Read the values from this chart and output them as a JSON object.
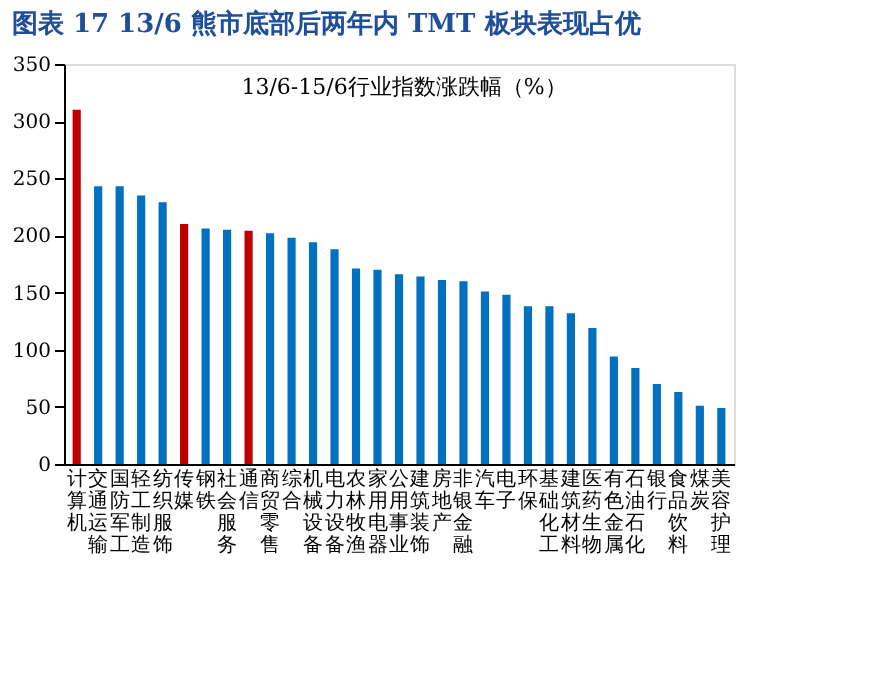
{
  "chart_data": {
    "type": "bar",
    "title": "图表 17    13/6 熊市底部后两年内 TMT 板块表现占优",
    "subtitle": "13/6-15/6行业指数涨跌幅（%）",
    "categories": [
      "计算机",
      "交通运输",
      "国防军工",
      "轻工制造",
      "纺织服饰",
      "传媒",
      "钢铁",
      "社会服务",
      "通信",
      "商贸零售",
      "综合",
      "机械设备",
      "电力设备",
      "农林牧渔",
      "家用电器",
      "公用事业",
      "建筑装饰",
      "房地产",
      "非银金融",
      "汽车",
      "电子",
      "环保",
      "基础化工",
      "建筑材料",
      "医药生物",
      "有色金属",
      "石油石化",
      "银行",
      "食品饮料",
      "煤炭",
      "美容护理"
    ],
    "values": [
      310,
      243,
      243,
      235,
      229,
      210,
      206,
      205,
      204,
      202,
      198,
      194,
      188,
      171,
      170,
      166,
      164,
      161,
      160,
      151,
      148,
      138,
      138,
      132,
      119,
      94,
      84,
      70,
      63,
      51,
      49
    ],
    "colors": [
      "#c00000",
      "#0070c0",
      "#0070c0",
      "#0070c0",
      "#0070c0",
      "#c00000",
      "#0070c0",
      "#0070c0",
      "#c00000",
      "#0070c0",
      "#0070c0",
      "#0070c0",
      "#0070c0",
      "#0070c0",
      "#0070c0",
      "#0070c0",
      "#0070c0",
      "#0070c0",
      "#0070c0",
      "#0070c0",
      "#0070c0",
      "#0070c0",
      "#0070c0",
      "#0070c0",
      "#0070c0",
      "#0070c0",
      "#0070c0",
      "#0070c0",
      "#0070c0",
      "#0070c0",
      "#0070c0"
    ],
    "ylim": [
      0,
      350
    ],
    "yticks": [
      0,
      50,
      100,
      150,
      200,
      250,
      300,
      350
    ],
    "grid": false
  }
}
